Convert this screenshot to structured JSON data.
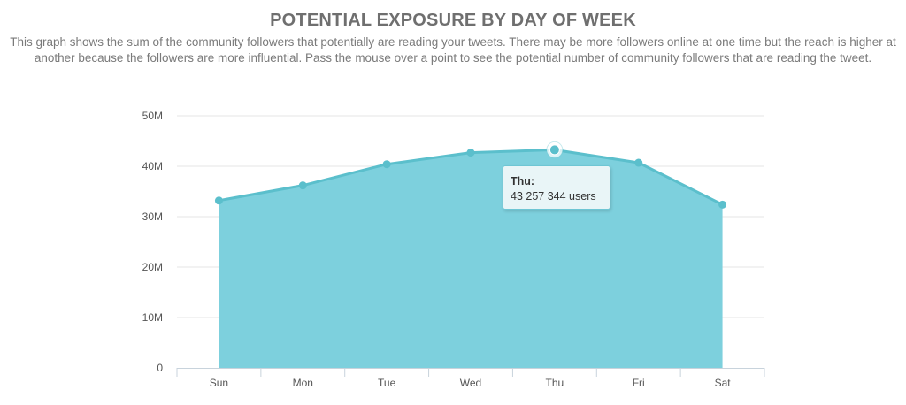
{
  "header": {
    "title": "POTENTIAL EXPOSURE BY DAY OF WEEK",
    "description": "This graph shows the sum of the community followers that potentially are reading your tweets. There may be more followers online at one time but the reach is higher at another because the followers are more influential. Pass the mouse over a point to see the potential number of community followers that are reading the tweet."
  },
  "tooltip": {
    "day": "Thu:",
    "value": "43 257 344 users"
  },
  "colors": {
    "area_fill": "#7dd0dd",
    "line": "#5bbfcc",
    "grid": "#e6e6e6",
    "axis": "#c8d3dc"
  },
  "chart_data": {
    "type": "area",
    "categories": [
      "Sun",
      "Mon",
      "Tue",
      "Wed",
      "Thu",
      "Fri",
      "Sat"
    ],
    "values": [
      33200000,
      36200000,
      40400000,
      42700000,
      43257344,
      40700000,
      32400000
    ],
    "highlighted_point": "Thu",
    "ylim": [
      0,
      50000000
    ],
    "yticks": [
      0,
      10000000,
      20000000,
      30000000,
      40000000,
      50000000
    ],
    "ytick_labels": [
      "0",
      "10M",
      "20M",
      "30M",
      "40M",
      "50M"
    ],
    "grid": true,
    "legend": "none"
  }
}
